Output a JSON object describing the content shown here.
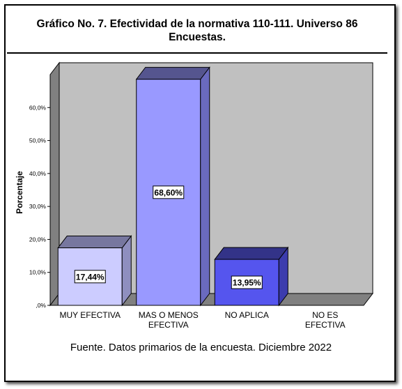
{
  "chart_data": {
    "type": "bar",
    "title": "Gráfico No. 7. Efectividad de la normativa 110-111. Universo 86 Encuestas.",
    "ylabel": "Porcentaje",
    "xlabel": "",
    "ylim": [
      0,
      70
    ],
    "y_ticks": [
      0,
      10,
      20,
      30,
      40,
      50,
      60
    ],
    "y_tick_labels": [
      ",0%",
      "10,0%",
      "20,0%",
      "30,0%",
      "40,0%",
      "50,0%",
      "60,0%"
    ],
    "categories": [
      "MUY EFECTIVA",
      "MAS O MENOS EFECTIVA",
      "NO APLICA",
      "NO ES EFECTIVA"
    ],
    "category_lines": [
      [
        "MUY EFECTIVA"
      ],
      [
        "MAS O MENOS",
        "EFECTIVA"
      ],
      [
        "NO APLICA"
      ],
      [
        "NO ES",
        "EFECTIVA"
      ]
    ],
    "values": [
      17.44,
      68.6,
      13.95,
      0
    ],
    "data_labels": [
      "17,44%",
      "68,60%",
      "13,95%",
      ""
    ],
    "colors": {
      "bars": [
        "#ccccff",
        "#9999ff",
        "#5555ee",
        "#5555ee"
      ],
      "bar_sides": [
        "#8f8fbf",
        "#6a6abf",
        "#3c3cae",
        "#3c3cae"
      ],
      "bar_tops": [
        "#77779f",
        "#55558f",
        "#333388",
        "#333388"
      ],
      "plot_bg": "#c0c0c0",
      "plot_floor": "#808080"
    },
    "grid": false,
    "legend": "none",
    "depth3d": true
  },
  "footer": {
    "source": "Fuente. Datos primarios de la encuesta. Diciembre 2022"
  }
}
